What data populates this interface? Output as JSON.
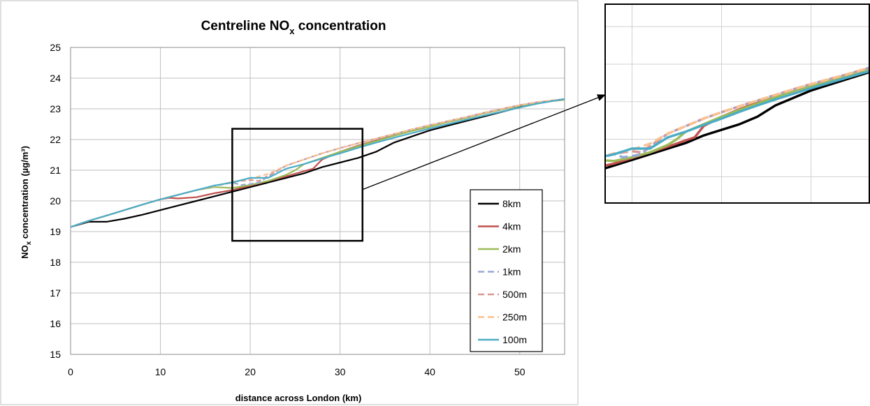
{
  "chart_data": {
    "type": "line",
    "title": {
      "main": "Centreline NO",
      "sub": "x",
      "rest": " concentration"
    },
    "xlabel": "distance across London (km)",
    "ylabel": {
      "main": "NO",
      "sub": "x",
      "rest": " concentration (µg/m³)"
    },
    "xlim": [
      0,
      55
    ],
    "ylim": [
      15,
      25
    ],
    "xticks": [
      "0",
      "10",
      "20",
      "30",
      "40",
      "50"
    ],
    "yticks": [
      "15",
      "16",
      "17",
      "18",
      "19",
      "20",
      "21",
      "22",
      "23",
      "24",
      "25"
    ],
    "grid": "vertical and horizontal major gridlines",
    "legend_position": "right",
    "series": [
      {
        "name": "8km",
        "color": "#000000",
        "dash": "solid",
        "x": [
          0,
          2,
          4,
          6,
          8,
          10,
          12,
          14,
          16,
          18,
          20,
          22,
          24,
          26,
          28,
          30,
          32,
          34,
          36,
          38,
          40,
          42,
          44,
          46,
          48,
          50,
          52,
          55
        ],
        "y": [
          19.15,
          19.32,
          19.32,
          19.42,
          19.55,
          19.7,
          19.85,
          20.0,
          20.15,
          20.3,
          20.45,
          20.6,
          20.75,
          20.9,
          21.1,
          21.25,
          21.4,
          21.6,
          21.9,
          22.1,
          22.3,
          22.45,
          22.6,
          22.75,
          22.9,
          23.05,
          23.2,
          23.3
        ]
      },
      {
        "name": "4km",
        "color": "#c0504d",
        "dash": "solid",
        "x": [
          0,
          2,
          4,
          6,
          8,
          10,
          11,
          12,
          14,
          16,
          18,
          20,
          22,
          24,
          26,
          27,
          28,
          30,
          32,
          34,
          36,
          38,
          40,
          42,
          44,
          46,
          48,
          50,
          52,
          55
        ],
        "y": [
          19.15,
          19.35,
          19.52,
          19.7,
          19.88,
          20.05,
          20.1,
          20.08,
          20.12,
          20.25,
          20.35,
          20.5,
          20.65,
          20.8,
          20.97,
          21.05,
          21.35,
          21.6,
          21.8,
          21.97,
          22.13,
          22.28,
          22.42,
          22.57,
          22.7,
          22.85,
          22.98,
          23.1,
          23.2,
          23.3
        ]
      },
      {
        "name": "2km",
        "color": "#9bbb59",
        "dash": "solid",
        "x": [
          0,
          2,
          4,
          6,
          8,
          10,
          12,
          14,
          16,
          18,
          20,
          22,
          24,
          25,
          26,
          28,
          30,
          32,
          34,
          36,
          38,
          40,
          42,
          44,
          46,
          48,
          50,
          52,
          55
        ],
        "y": [
          19.15,
          19.35,
          19.52,
          19.7,
          19.88,
          20.05,
          20.2,
          20.35,
          20.45,
          20.42,
          20.52,
          20.65,
          20.85,
          21.0,
          21.2,
          21.4,
          21.6,
          21.78,
          21.95,
          22.12,
          22.28,
          22.42,
          22.57,
          22.7,
          22.85,
          22.98,
          23.1,
          23.2,
          23.3
        ]
      },
      {
        "name": "1km",
        "color": "#95a9d6",
        "dash": "dashed",
        "x": [
          0,
          2,
          4,
          6,
          8,
          10,
          12,
          14,
          16,
          18,
          19,
          20,
          21,
          22,
          24,
          26,
          28,
          30,
          32,
          34,
          36,
          38,
          40,
          42,
          44,
          46,
          48,
          50,
          52,
          55
        ],
        "y": [
          19.15,
          19.35,
          19.52,
          19.7,
          19.88,
          20.05,
          20.2,
          20.35,
          20.48,
          20.6,
          20.52,
          20.55,
          20.6,
          20.8,
          21.15,
          21.35,
          21.55,
          21.72,
          21.88,
          22.03,
          22.18,
          22.33,
          22.47,
          22.6,
          22.73,
          22.87,
          23.0,
          23.12,
          23.22,
          23.32
        ]
      },
      {
        "name": "500m",
        "color": "#d99694",
        "dash": "dashed",
        "x": [
          0,
          2,
          4,
          6,
          8,
          10,
          12,
          14,
          16,
          18,
          20,
          21,
          22,
          24,
          26,
          28,
          30,
          32,
          34,
          36,
          38,
          40,
          42,
          44,
          46,
          48,
          50,
          52,
          55
        ],
        "y": [
          19.15,
          19.35,
          19.52,
          19.7,
          19.88,
          20.05,
          20.2,
          20.35,
          20.48,
          20.62,
          20.68,
          20.65,
          20.82,
          21.15,
          21.35,
          21.55,
          21.72,
          21.88,
          22.03,
          22.18,
          22.33,
          22.47,
          22.6,
          22.73,
          22.87,
          23.0,
          23.12,
          23.22,
          23.32
        ]
      },
      {
        "name": "250m",
        "color": "#fac090",
        "dash": "dashed",
        "x": [
          0,
          2,
          4,
          6,
          8,
          10,
          12,
          14,
          16,
          18,
          20,
          22,
          24,
          26,
          28,
          30,
          32,
          34,
          36,
          38,
          40,
          42,
          44,
          46,
          48,
          50,
          52,
          55
        ],
        "y": [
          19.15,
          19.35,
          19.52,
          19.7,
          19.88,
          20.05,
          20.2,
          20.35,
          20.48,
          20.62,
          20.72,
          20.88,
          21.15,
          21.35,
          21.55,
          21.72,
          21.88,
          22.03,
          22.18,
          22.33,
          22.47,
          22.6,
          22.73,
          22.87,
          23.0,
          23.12,
          23.22,
          23.32
        ]
      },
      {
        "name": "100m",
        "color": "#4bacc6",
        "dash": "solid",
        "x": [
          0,
          2,
          4,
          6,
          8,
          10,
          12,
          14,
          16,
          18,
          20,
          22,
          24,
          26,
          28,
          30,
          32,
          34,
          36,
          38,
          40,
          42,
          44,
          46,
          48,
          50,
          52,
          55
        ],
        "y": [
          19.15,
          19.35,
          19.52,
          19.7,
          19.88,
          20.05,
          20.2,
          20.35,
          20.5,
          20.6,
          20.75,
          20.75,
          21.05,
          21.2,
          21.38,
          21.55,
          21.73,
          21.9,
          22.06,
          22.21,
          22.36,
          22.5,
          22.64,
          22.78,
          22.91,
          23.04,
          23.17,
          23.32
        ]
      }
    ],
    "annotations": [
      {
        "type": "zoom-box",
        "xrange": [
          18,
          32.5
        ],
        "yrange": [
          18.7,
          22.35
        ]
      },
      {
        "type": "inset",
        "description": "magnified view of the boxed region"
      }
    ]
  }
}
